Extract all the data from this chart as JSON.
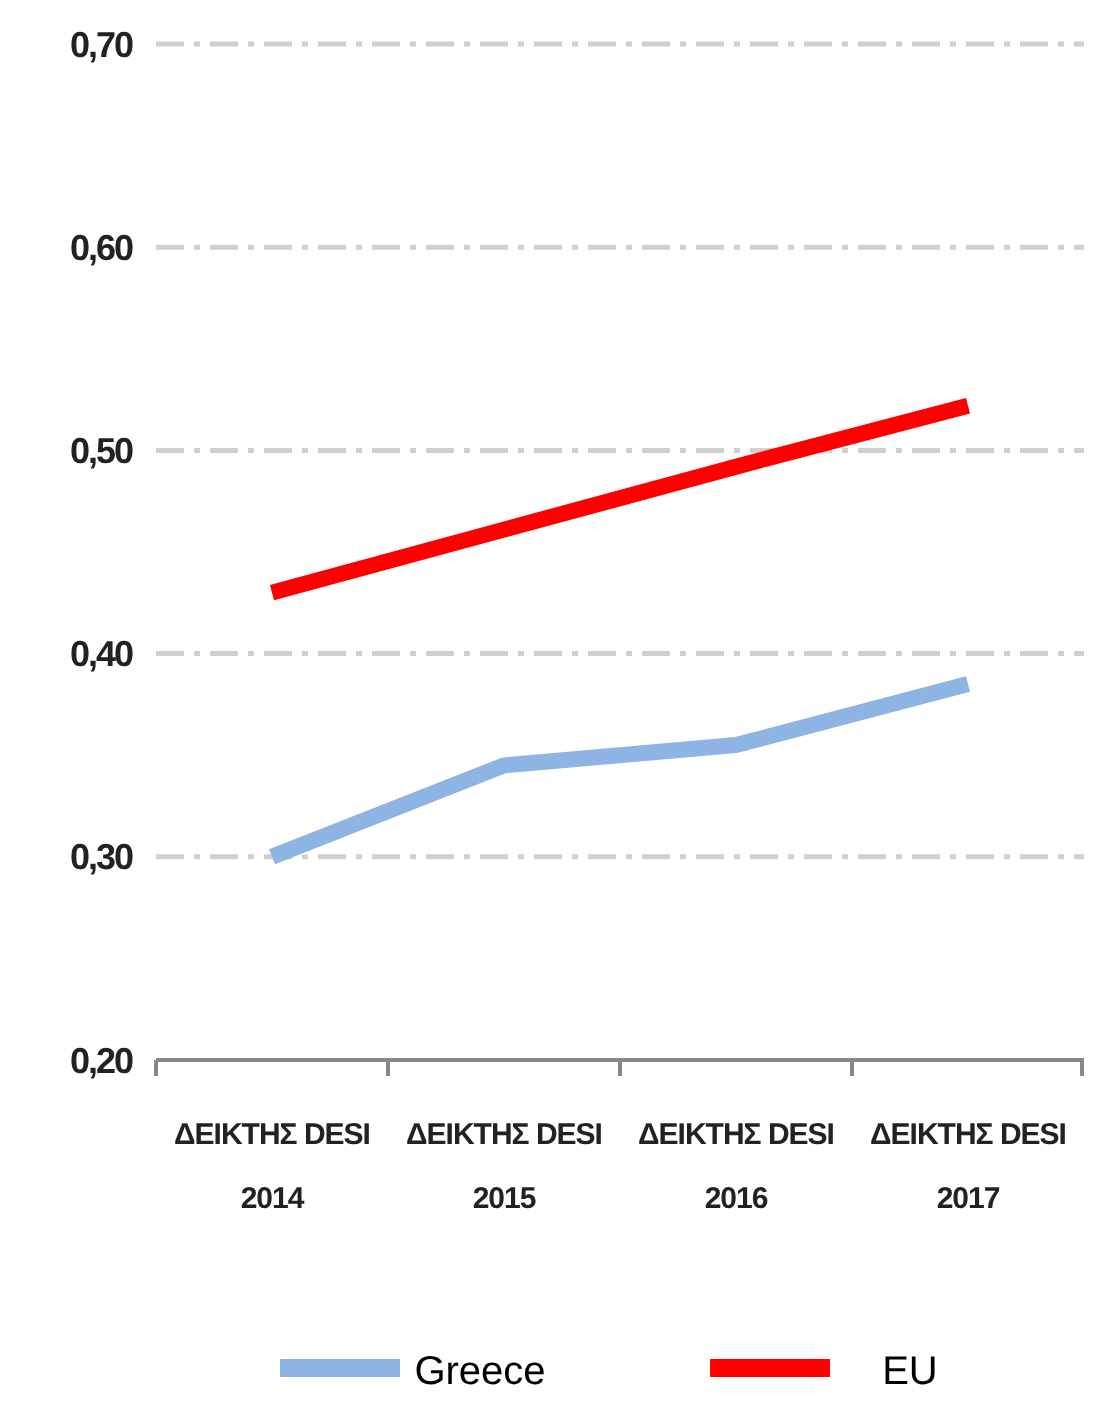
{
  "chart_data": {
    "type": "line",
    "categories": [
      "ΔΕΙΚΤΗΣ DESI 2014",
      "ΔΕΙΚΤΗΣ DESI 2015",
      "ΔΕΙΚΤΗΣ DESI 2016",
      "ΔΕΙΚΤΗΣ DESI 2017"
    ],
    "series": [
      {
        "name": "Greece",
        "color": "#8eb4e3",
        "values": [
          0.3,
          0.345,
          0.355,
          0.385
        ]
      },
      {
        "name": "EU",
        "color": "#ff0000",
        "values": [
          0.43,
          0.461,
          0.492,
          0.522
        ]
      }
    ],
    "ylim": [
      0.2,
      0.7
    ],
    "yticks": [
      {
        "value": 0.2,
        "label": "0,20"
      },
      {
        "value": 0.3,
        "label": "0,30"
      },
      {
        "value": 0.4,
        "label": "0,40"
      },
      {
        "value": 0.5,
        "label": "0,50"
      },
      {
        "value": 0.6,
        "label": "0,60"
      },
      {
        "value": 0.7,
        "label": "0,70"
      }
    ],
    "grid": "y",
    "legend": "bottom",
    "marker": "none",
    "line_style": "solid"
  }
}
